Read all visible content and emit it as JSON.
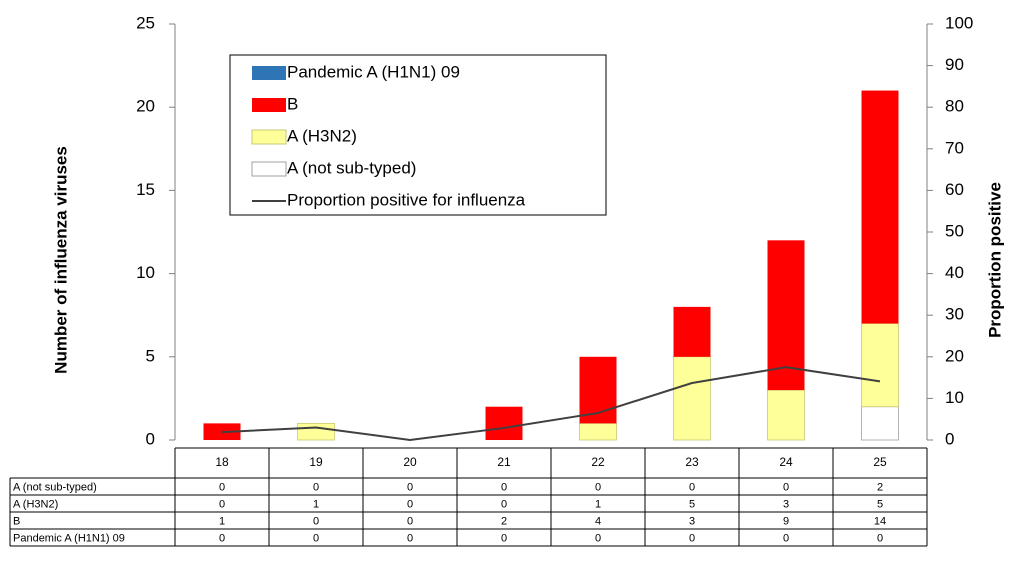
{
  "chart_data": {
    "type": "bar",
    "y_label": "Number of influenza viruses",
    "y2_label": "Proportion positive",
    "categories": [
      "18",
      "19",
      "20",
      "21",
      "22",
      "23",
      "24",
      "25"
    ],
    "series": [
      {
        "name": "Pandemic A (H1N1) 09",
        "color": "#2e75b6",
        "values": [
          0,
          0,
          0,
          0,
          0,
          0,
          0,
          0
        ]
      },
      {
        "name": "B",
        "color": "#ff0000",
        "values": [
          1,
          0,
          0,
          2,
          4,
          3,
          9,
          14
        ]
      },
      {
        "name": "A (H3N2)",
        "color": "#ffff99",
        "values": [
          0,
          1,
          0,
          0,
          1,
          5,
          3,
          5
        ]
      },
      {
        "name": "A (not sub-typed)",
        "color": "#ffffff",
        "values": [
          0,
          0,
          0,
          0,
          0,
          0,
          0,
          2
        ]
      },
      {
        "name": "Proportion positive for influenza",
        "color": "#404040",
        "type": "line",
        "axis": "y2",
        "values": [
          1.9,
          3,
          0,
          2.9,
          6.5,
          13.7,
          17.5,
          14.1
        ]
      }
    ],
    "ylim": [
      0,
      25
    ],
    "yticks": [
      0,
      5,
      10,
      15,
      20,
      25
    ],
    "y2lim": [
      0,
      100
    ],
    "y2ticks": [
      0,
      10,
      20,
      30,
      40,
      50,
      60,
      70,
      80,
      90,
      100
    ],
    "stacked": true,
    "data_table": true
  }
}
